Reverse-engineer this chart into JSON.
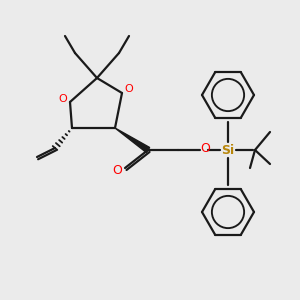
{
  "bg_color": "#ebebeb",
  "bond_color": "#1a1a1a",
  "oxygen_color": "#ff0000",
  "silicon_color": "#b8860b",
  "line_width": 1.6,
  "fig_w": 3.0,
  "fig_h": 3.0,
  "dpi": 100,
  "xlim": [
    0,
    300
  ],
  "ylim": [
    0,
    300
  ]
}
